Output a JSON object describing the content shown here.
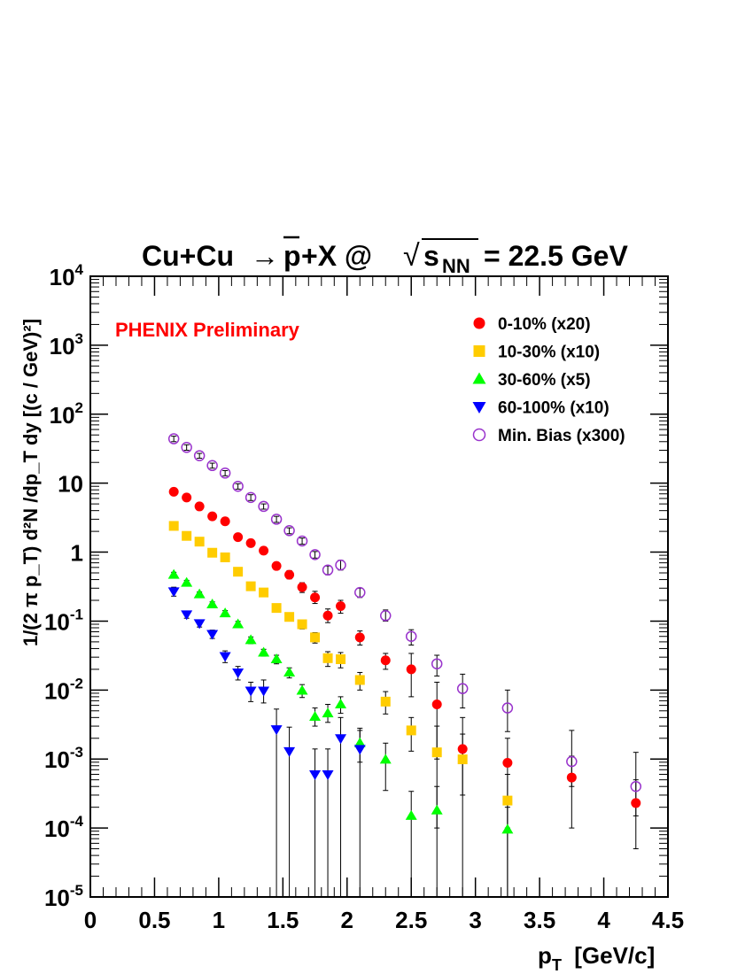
{
  "chart_data": {
    "type": "scatter",
    "title_parts": {
      "reaction_prefix": "Cu+Cu",
      "arrow": "→",
      "particle": "p",
      "reaction_suffix": "+X @",
      "sqrt_symbol": "√",
      "energy_var": "s",
      "energy_sub": "NN",
      "energy_value": "= 22.5 GeV"
    },
    "annotation": "PHENIX Preliminary",
    "annotation_color": "#ff0000",
    "xlabel": {
      "main": "p",
      "sub": "T",
      "rest": " [GeV/c]"
    },
    "ylabel": "1/(2 π p_T) d²N /dp_T dy [(c / GeV)²]",
    "xlim": [
      0,
      4.5
    ],
    "ylim": [
      1e-05,
      10000
    ],
    "yscale": "log",
    "x_ticks": [
      "0",
      "0.5",
      "1",
      "1.5",
      "2",
      "2.5",
      "3",
      "3.5",
      "4",
      "4.5"
    ],
    "y_ticks": [
      {
        "value": 1e-05,
        "base": "10",
        "exp": "-5"
      },
      {
        "value": 0.0001,
        "base": "10",
        "exp": "-4"
      },
      {
        "value": 0.001,
        "base": "10",
        "exp": "-3"
      },
      {
        "value": 0.01,
        "base": "10",
        "exp": "-2"
      },
      {
        "value": 0.1,
        "base": "10",
        "exp": "-1"
      },
      {
        "value": 1,
        "base": "1",
        "exp": ""
      },
      {
        "value": 10,
        "base": "10",
        "exp": ""
      },
      {
        "value": 100,
        "base": "10",
        "exp": "2"
      },
      {
        "value": 1000,
        "base": "10",
        "exp": "3"
      },
      {
        "value": 10000,
        "base": "10",
        "exp": "4"
      }
    ],
    "legend_position": "top-right",
    "series": [
      {
        "name": "0-10% (x20)",
        "marker": "circle",
        "filled": true,
        "color": "#ff0000",
        "points": [
          [
            0.65,
            7.5,
            6.8,
            8.2
          ],
          [
            0.75,
            6.2,
            5.6,
            6.8
          ],
          [
            0.85,
            4.6,
            4.2,
            5.0
          ],
          [
            0.95,
            3.3,
            3.0,
            3.6
          ],
          [
            1.05,
            2.8,
            2.5,
            3.1
          ],
          [
            1.15,
            1.65,
            1.5,
            1.8
          ],
          [
            1.25,
            1.35,
            1.2,
            1.5
          ],
          [
            1.35,
            1.05,
            0.95,
            1.15
          ],
          [
            1.45,
            0.63,
            0.56,
            0.7
          ],
          [
            1.55,
            0.47,
            0.41,
            0.54
          ],
          [
            1.65,
            0.31,
            0.26,
            0.36
          ],
          [
            1.75,
            0.22,
            0.18,
            0.27
          ],
          [
            1.85,
            0.12,
            0.095,
            0.15
          ],
          [
            1.95,
            0.165,
            0.13,
            0.2
          ],
          [
            2.1,
            0.058,
            0.045,
            0.072
          ],
          [
            2.3,
            0.027,
            0.02,
            0.034
          ],
          [
            2.5,
            0.02,
            0.008,
            0.034
          ],
          [
            2.7,
            0.0062,
            0.001,
            0.013
          ],
          [
            2.9,
            0.0014,
            0.0003,
            0.004
          ],
          [
            3.25,
            0.00088,
            0.0001,
            0.002
          ],
          [
            3.75,
            0.00054,
            0.0001,
            0.0011
          ],
          [
            4.25,
            0.00023,
            5e-05,
            0.0005
          ]
        ]
      },
      {
        "name": "10-30% (x10)",
        "marker": "square",
        "filled": true,
        "color": "#ffcc00",
        "points": [
          [
            0.65,
            2.4,
            2.2,
            2.6
          ],
          [
            0.75,
            1.72,
            1.58,
            1.86
          ],
          [
            0.85,
            1.42,
            1.3,
            1.54
          ],
          [
            0.95,
            0.98,
            0.9,
            1.06
          ],
          [
            1.05,
            0.84,
            0.77,
            0.91
          ],
          [
            1.15,
            0.52,
            0.47,
            0.57
          ],
          [
            1.25,
            0.32,
            0.29,
            0.35
          ],
          [
            1.35,
            0.26,
            0.23,
            0.29
          ],
          [
            1.45,
            0.155,
            0.135,
            0.175
          ],
          [
            1.55,
            0.115,
            0.1,
            0.13
          ],
          [
            1.65,
            0.09,
            0.077,
            0.103
          ],
          [
            1.75,
            0.058,
            0.048,
            0.068
          ],
          [
            1.85,
            0.029,
            0.022,
            0.036
          ],
          [
            1.95,
            0.028,
            0.021,
            0.035
          ],
          [
            2.1,
            0.014,
            0.01,
            0.018
          ],
          [
            2.3,
            0.0068,
            0.0045,
            0.0095
          ],
          [
            2.5,
            0.0026,
            0.0013,
            0.004
          ],
          [
            2.7,
            0.00125,
            0.0001,
            0.003
          ],
          [
            2.9,
            0.00099,
            1e-05,
            0.0023
          ],
          [
            3.25,
            0.00025,
            1e-05,
            0.0006
          ]
        ]
      },
      {
        "name": "30-60% (x5)",
        "marker": "triangle-up",
        "filled": true,
        "color": "#00ff00",
        "points": [
          [
            0.65,
            0.47,
            0.43,
            0.51
          ],
          [
            0.75,
            0.36,
            0.33,
            0.39
          ],
          [
            0.85,
            0.245,
            0.225,
            0.265
          ],
          [
            0.95,
            0.175,
            0.16,
            0.19
          ],
          [
            1.05,
            0.13,
            0.118,
            0.142
          ],
          [
            1.15,
            0.09,
            0.081,
            0.099
          ],
          [
            1.25,
            0.053,
            0.047,
            0.059
          ],
          [
            1.35,
            0.035,
            0.031,
            0.039
          ],
          [
            1.45,
            0.028,
            0.024,
            0.032
          ],
          [
            1.55,
            0.018,
            0.015,
            0.021
          ],
          [
            1.65,
            0.0098,
            0.0078,
            0.012
          ],
          [
            1.75,
            0.0041,
            0.003,
            0.0055
          ],
          [
            1.85,
            0.0046,
            0.0034,
            0.0062
          ],
          [
            1.95,
            0.0062,
            0.0046,
            0.008
          ],
          [
            2.1,
            0.0017,
            0.0009,
            0.0026
          ],
          [
            2.3,
            0.00098,
            0.00035,
            0.0017
          ],
          [
            2.5,
            0.00015,
            1e-05,
            0.00034
          ],
          [
            2.7,
            0.00018,
            1e-05,
            0.0004
          ],
          [
            3.25,
            9.5e-05,
            1e-05,
            0.0002
          ]
        ]
      },
      {
        "name": "60-100% (x10)",
        "marker": "triangle-down",
        "filled": true,
        "color": "#0000ff",
        "points": [
          [
            0.65,
            0.27,
            0.23,
            0.31
          ],
          [
            0.75,
            0.125,
            0.11,
            0.14
          ],
          [
            0.85,
            0.093,
            0.082,
            0.104
          ],
          [
            0.95,
            0.065,
            0.056,
            0.074
          ],
          [
            1.05,
            0.031,
            0.025,
            0.037
          ],
          [
            1.15,
            0.018,
            0.014,
            0.022
          ],
          [
            1.25,
            0.0098,
            0.0068,
            0.013
          ],
          [
            1.35,
            0.0098,
            0.0065,
            0.014
          ],
          [
            1.45,
            0.0027,
            1e-05,
            0.0053
          ],
          [
            1.55,
            0.0013,
            1e-05,
            0.0029
          ],
          [
            1.75,
            0.0006,
            1e-05,
            0.0014
          ],
          [
            1.85,
            0.0006,
            1e-05,
            0.0014
          ],
          [
            1.95,
            0.002,
            1e-05,
            0.004
          ],
          [
            2.1,
            0.0014,
            1e-05,
            0.0028
          ]
        ]
      },
      {
        "name": "Min. Bias (x300)",
        "marker": "circle",
        "filled": false,
        "color": "#9933cc",
        "points": [
          [
            0.65,
            44,
            40,
            48
          ],
          [
            0.75,
            33,
            30,
            36
          ],
          [
            0.85,
            25,
            23,
            27
          ],
          [
            0.95,
            18,
            16.5,
            19.5
          ],
          [
            1.05,
            14,
            12.8,
            15.2
          ],
          [
            1.15,
            9,
            8.2,
            9.8
          ],
          [
            1.25,
            6.2,
            5.6,
            6.8
          ],
          [
            1.35,
            4.6,
            4.2,
            5.0
          ],
          [
            1.45,
            3.0,
            2.7,
            3.3
          ],
          [
            1.55,
            2.05,
            1.85,
            2.25
          ],
          [
            1.65,
            1.45,
            1.3,
            1.6
          ],
          [
            1.75,
            0.92,
            0.82,
            1.02
          ],
          [
            1.85,
            0.55,
            0.47,
            0.63
          ],
          [
            1.95,
            0.65,
            0.55,
            0.76
          ],
          [
            2.1,
            0.26,
            0.22,
            0.3
          ],
          [
            2.3,
            0.12,
            0.1,
            0.145
          ],
          [
            2.5,
            0.06,
            0.045,
            0.075
          ],
          [
            2.7,
            0.024,
            0.016,
            0.032
          ],
          [
            2.9,
            0.0105,
            0.0055,
            0.017
          ],
          [
            3.25,
            0.0055,
            0.0025,
            0.01
          ],
          [
            3.75,
            0.00092,
            0.0004,
            0.0026
          ],
          [
            4.25,
            0.0004,
            0.00015,
            0.00125
          ]
        ]
      }
    ]
  }
}
